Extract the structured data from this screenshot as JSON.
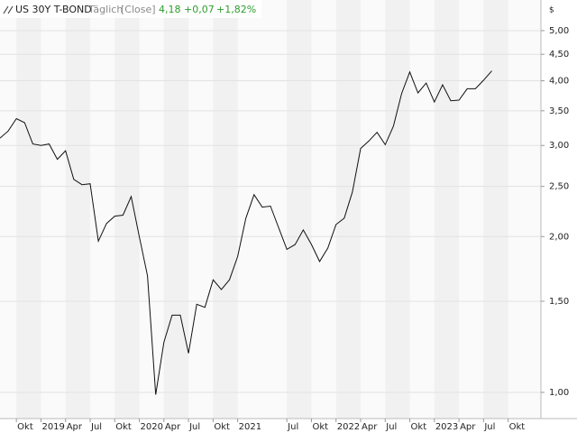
{
  "chart_data": {
    "type": "line",
    "title": "US 30Y T-BOND",
    "interval": "Täglich",
    "mode": "[Close]",
    "last": "4,18",
    "change": "+0,07",
    "change_pct": "+1,82%",
    "unit_label": "$",
    "color": "#111111",
    "log_scale": true,
    "grid": true,
    "x": [
      "2018-08",
      "2018-09",
      "2018-10",
      "2018-11",
      "2018-12",
      "2019-01",
      "2019-02",
      "2019-03",
      "2019-04",
      "2019-05",
      "2019-06",
      "2019-07",
      "2019-08",
      "2019-09",
      "2019-10",
      "2019-11",
      "2019-12",
      "2020-01",
      "2020-02",
      "2020-03",
      "2020-04",
      "2020-05",
      "2020-06",
      "2020-07",
      "2020-08",
      "2020-09",
      "2020-10",
      "2020-11",
      "2020-12",
      "2021-01",
      "2021-02",
      "2021-03",
      "2021-04",
      "2021-05",
      "2021-06",
      "2021-07",
      "2021-08",
      "2021-09",
      "2021-10",
      "2021-11",
      "2021-12",
      "2022-01",
      "2022-02",
      "2022-03",
      "2022-04",
      "2022-05",
      "2022-06",
      "2022-07",
      "2022-08",
      "2022-09",
      "2022-10",
      "2022-11",
      "2022-12",
      "2023-01",
      "2023-02",
      "2023-03",
      "2023-04",
      "2023-05",
      "2023-06",
      "2023-07",
      "2023-08"
    ],
    "values": [
      3.1,
      3.2,
      3.38,
      3.32,
      3.02,
      3.0,
      3.02,
      2.82,
      2.93,
      2.58,
      2.52,
      2.53,
      1.96,
      2.12,
      2.19,
      2.2,
      2.39,
      2.0,
      1.68,
      0.99,
      1.25,
      1.41,
      1.41,
      1.19,
      1.48,
      1.46,
      1.65,
      1.58,
      1.65,
      1.83,
      2.17,
      2.41,
      2.28,
      2.29,
      2.08,
      1.89,
      1.93,
      2.06,
      1.93,
      1.79,
      1.9,
      2.11,
      2.17,
      2.44,
      2.96,
      3.06,
      3.18,
      3.01,
      3.27,
      3.78,
      4.16,
      3.79,
      3.96,
      3.64,
      3.93,
      3.66,
      3.67,
      3.86,
      3.86,
      4.01,
      4.18
    ],
    "xlim": [
      "2018-08",
      "2024-02"
    ],
    "xticks": [
      {
        "value": "2018-10",
        "label": "Okt"
      },
      {
        "value": "2019-01",
        "label": "2019"
      },
      {
        "value": "2019-04",
        "label": "Apr"
      },
      {
        "value": "2019-07",
        "label": "Jul"
      },
      {
        "value": "2019-10",
        "label": "Okt"
      },
      {
        "value": "2020-01",
        "label": "2020"
      },
      {
        "value": "2020-04",
        "label": "Apr"
      },
      {
        "value": "2020-07",
        "label": "Jul"
      },
      {
        "value": "2020-10",
        "label": "Okt"
      },
      {
        "value": "2021-01",
        "label": "2021"
      },
      {
        "value": "2021-07",
        "label": "Jul"
      },
      {
        "value": "2021-10",
        "label": "Okt"
      },
      {
        "value": "2022-01",
        "label": "2022"
      },
      {
        "value": "2022-04",
        "label": "Apr"
      },
      {
        "value": "2022-07",
        "label": "Jul"
      },
      {
        "value": "2022-10",
        "label": "Okt"
      },
      {
        "value": "2023-01",
        "label": "2023"
      },
      {
        "value": "2023-04",
        "label": "Apr"
      },
      {
        "value": "2023-07",
        "label": "Jul"
      },
      {
        "value": "2023-10",
        "label": "Okt"
      }
    ],
    "ylim": [
      0.89,
      5.73
    ],
    "yticks": [
      {
        "value": 5,
        "label": "5,00"
      },
      {
        "value": 4.5,
        "label": "4,50"
      },
      {
        "value": 4,
        "label": "4,00"
      },
      {
        "value": 3.5,
        "label": "3,50"
      },
      {
        "value": 3,
        "label": "3,00"
      },
      {
        "value": 2.5,
        "label": "2,50"
      },
      {
        "value": 2,
        "label": "2,00"
      },
      {
        "value": 1.5,
        "label": "1,50"
      },
      {
        "value": 1,
        "label": "1,00"
      }
    ]
  }
}
